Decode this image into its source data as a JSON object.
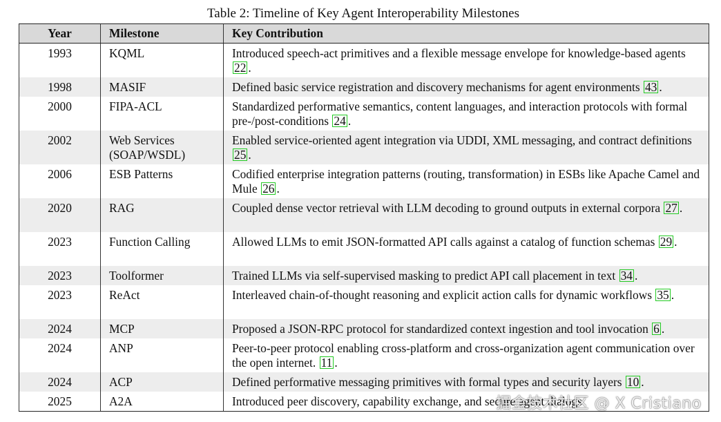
{
  "caption": "Table 2: Timeline of Key Agent Interoperability Milestones",
  "headers": {
    "year": "Year",
    "milestone": "Milestone",
    "contribution": "Key Contribution"
  },
  "rows": [
    {
      "year": "1993",
      "milestone": "KQML",
      "text": "Introduced speech-act primitives and a flexible message envelope for knowledge-based agents ",
      "cite": "22",
      "end": "."
    },
    {
      "year": "1998",
      "milestone": "MASIF",
      "text": "Defined basic service registration and discovery mechanisms for agent environments ",
      "cite": "43",
      "end": "."
    },
    {
      "year": "2000",
      "milestone": "FIPA-ACL",
      "text": "Standardized performative semantics, content languages, and interaction protocols with formal pre-/post-conditions ",
      "cite": "24",
      "end": "."
    },
    {
      "year": "2002",
      "milestone": "Web Services (SOAP/WSDL)",
      "text": "Enabled service-oriented agent integration via UDDI, XML messaging, and contract definitions ",
      "cite": "25",
      "end": "."
    },
    {
      "year": "2006",
      "milestone": "ESB Patterns",
      "text": "Codified enterprise integration patterns (routing, transformation) in ESBs like Apache Camel and Mule ",
      "cite": "26",
      "end": "."
    },
    {
      "year": "2020",
      "milestone": "RAG",
      "text": "Coupled dense vector retrieval with LLM decoding to ground outputs in external corpora ",
      "cite": "27",
      "end": "."
    },
    {
      "year": "2023",
      "milestone": "Function Calling",
      "text": "Allowed LLMs to emit JSON-formatted API calls against a catalog of function schemas ",
      "cite": "29",
      "end": "."
    },
    {
      "year": "2023",
      "milestone": "Toolformer",
      "text": "Trained LLMs via self-supervised masking to predict API call placement in text ",
      "cite": "34",
      "end": "."
    },
    {
      "year": "2023",
      "milestone": "ReAct",
      "text": "Interleaved chain-of-thought reasoning and explicit action calls for dynamic workflows ",
      "cite": "35",
      "end": "."
    },
    {
      "year": "2024",
      "milestone": "MCP",
      "text": "Proposed a JSON-RPC protocol for standardized context ingestion and tool invocation ",
      "cite": "6",
      "end": "."
    },
    {
      "year": "2024",
      "milestone": "ANP",
      "text": "Peer-to-peer protocol enabling cross-platform and cross-organization agent communication over the open internet. ",
      "cite": "11",
      "end": "."
    },
    {
      "year": "2024",
      "milestone": "ACP",
      "text": "Defined performative messaging primitives with formal types and security layers ",
      "cite": "10",
      "end": "."
    },
    {
      "year": "2025",
      "milestone": "A2A",
      "text": "Introduced peer discovery, capability exchange, and secure agent dialogs ",
      "cite": "",
      "end": ""
    }
  ],
  "watermark": "掘金技术社区 @ X Cristiano"
}
